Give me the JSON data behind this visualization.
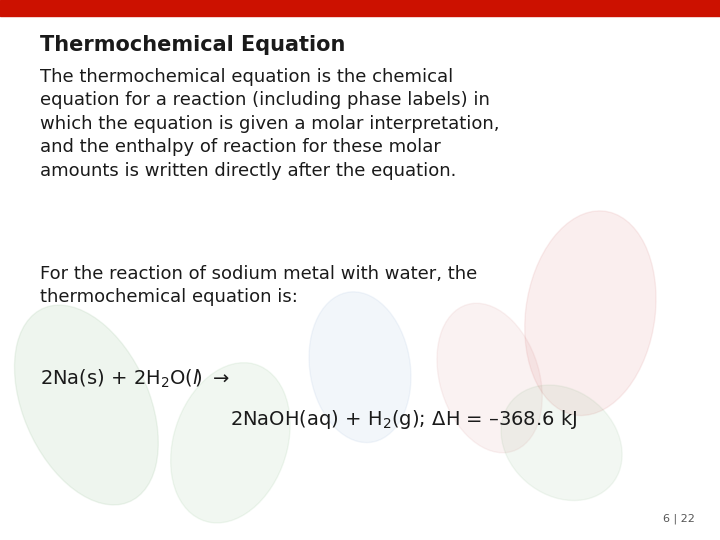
{
  "title": "Thermochemical Equation",
  "body_text_1": "The thermochemical equation is the chemical\nequation for a reaction (including phase labels) in\nwhich the equation is given a molar interpretation,\nand the enthalpy of reaction for these molar\namounts is written directly after the equation.",
  "body_text_2": "For the reaction of sodium metal with water, the\nthermochemical equation is:",
  "red_bar_color": "#cc1100",
  "bg_color": "#ffffff",
  "text_color": "#1a1a1a",
  "page_num": "6 | 22",
  "title_fontsize": 15,
  "body_fontsize": 13,
  "equation_fontsize": 14,
  "pagenum_fontsize": 8,
  "red_bar_height": 0.03
}
